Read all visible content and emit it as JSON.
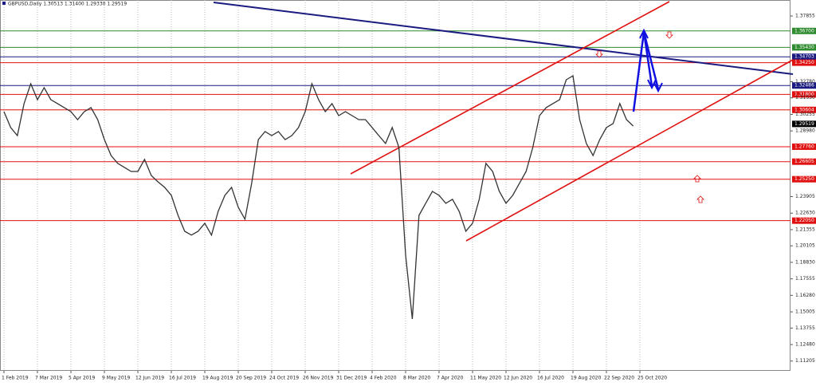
{
  "chart_data": {
    "type": "line",
    "title": "GBPUSD,Daily  1.30513 1.31400 1.29330 1.29519",
    "color": "#333333",
    "grid": true,
    "categories": [
      "1 Feb 2019",
      null,
      null,
      null,
      null,
      "7 Mar 2019",
      null,
      null,
      null,
      null,
      "5 Apr 2019",
      null,
      null,
      null,
      null,
      "9 May 2019",
      null,
      null,
      null,
      null,
      "12 Jun 2019",
      null,
      null,
      null,
      null,
      "16 Jul 2019",
      null,
      null,
      null,
      null,
      "19 Aug 2019",
      null,
      null,
      null,
      null,
      "20 Sep 2019",
      null,
      null,
      null,
      null,
      "24 Oct 2019",
      null,
      null,
      null,
      null,
      "26 Nov 2019",
      null,
      null,
      null,
      null,
      "31 Dec 2019",
      null,
      null,
      null,
      null,
      "4 Feb 2020",
      null,
      null,
      null,
      null,
      "8 Mar 2020",
      null,
      null,
      null,
      null,
      "7 Apr 2020",
      null,
      null,
      null,
      null,
      "11 May 2020",
      null,
      null,
      null,
      null,
      "12 Jun 2020",
      null,
      null,
      null,
      null,
      "16 Jul 2020",
      null,
      null,
      null,
      null,
      "19 Aug 2020",
      null,
      null,
      null,
      null,
      "22 Sep 2020",
      null,
      null,
      null,
      null,
      "25 Oct 2020",
      null,
      null,
      null,
      null,
      null,
      null,
      null,
      null,
      null,
      null,
      null,
      null,
      null,
      null,
      null,
      null,
      null,
      null,
      null,
      null,
      null,
      null
    ],
    "values": [
      1.3047,
      1.2924,
      1.2862,
      1.3109,
      1.3262,
      1.3139,
      1.3232,
      1.3139,
      1.3109,
      1.3078,
      1.3047,
      1.2985,
      1.3047,
      1.3078,
      1.2985,
      1.2831,
      1.2708,
      1.2647,
      1.2616,
      1.2585,
      1.2585,
      1.2678,
      1.2554,
      1.2505,
      1.2462,
      1.24,
      1.2246,
      1.2123,
      1.2093,
      1.2123,
      1.2185,
      1.2093,
      1.2277,
      1.24,
      1.2462,
      1.2308,
      1.2216,
      1.2493,
      1.2831,
      1.2893,
      1.2862,
      1.2893,
      1.2831,
      1.2862,
      1.2924,
      1.3047,
      1.3262,
      1.3139,
      1.3047,
      1.3109,
      1.3016,
      1.3047,
      1.3016,
      1.2985,
      1.2985,
      1.2924,
      1.2862,
      1.2801,
      1.2924,
      1.277,
      1.1939,
      1.1446,
      1.2246,
      1.2339,
      1.2431,
      1.24,
      1.2339,
      1.237,
      1.2277,
      1.2123,
      1.2185,
      1.237,
      1.2647,
      1.2585,
      1.2431,
      1.2339,
      1.24,
      1.2493,
      1.2585,
      1.277,
      1.3016,
      1.3078,
      1.3109,
      1.3139,
      1.3293,
      1.3324,
      1.2985,
      1.2801,
      1.2708,
      1.2831,
      1.2924,
      1.2955,
      1.3109,
      1.2985,
      1.2936,
      null,
      null,
      null,
      null,
      null,
      null,
      null,
      null,
      null,
      null,
      null,
      null,
      null,
      null,
      null,
      null,
      null,
      null,
      null,
      null,
      null,
      null,
      null
    ],
    "ylim": [
      1.1045,
      1.3909
    ],
    "yticks": [
      1.37855,
      {
        "value": 1.3278,
        "label": "1.32780"
      },
      {
        "value": 1.3153,
        "label": "1.31530"
      },
      1.30255,
      {
        "value": 1.2898,
        "label": "1.28980"
      },
      1.23905,
      {
        "value": 1.2263,
        "label": "1.22630"
      },
      1.21355,
      1.20105,
      {
        "value": 1.1883,
        "label": "1.18830"
      },
      1.17555,
      {
        "value": 1.1628,
        "label": "1.16280"
      },
      1.15005,
      1.13755,
      {
        "value": 1.1248,
        "label": "1.12480"
      },
      1.11205
    ],
    "levels": [
      {
        "value": 1.367,
        "label": "1.36700",
        "color": "#2e8b2e"
      },
      {
        "value": 1.3543,
        "label": "1.35430",
        "color": "#2e8b2e"
      },
      {
        "value": 1.34703,
        "color": "#1a1a80"
      },
      {
        "value": 1.3425,
        "label": "1.34250",
        "color": "#e01010"
      },
      {
        "value": 1.32486,
        "color": "#1a1a80"
      },
      {
        "value": 1.318,
        "label": "1.31800",
        "color": "#e01010"
      },
      {
        "value": 1.30604,
        "color": "#e01010"
      },
      {
        "value": 1.2776,
        "label": "1.27760",
        "color": "#e01010"
      },
      {
        "value": 1.26605,
        "color": "#e01010"
      },
      {
        "value": 1.2525,
        "label": "1.25250",
        "color": "#e01010"
      },
      {
        "value": 1.2205,
        "label": "1.22050",
        "color": "#e01010"
      }
    ],
    "last_price": 1.29519
  }
}
